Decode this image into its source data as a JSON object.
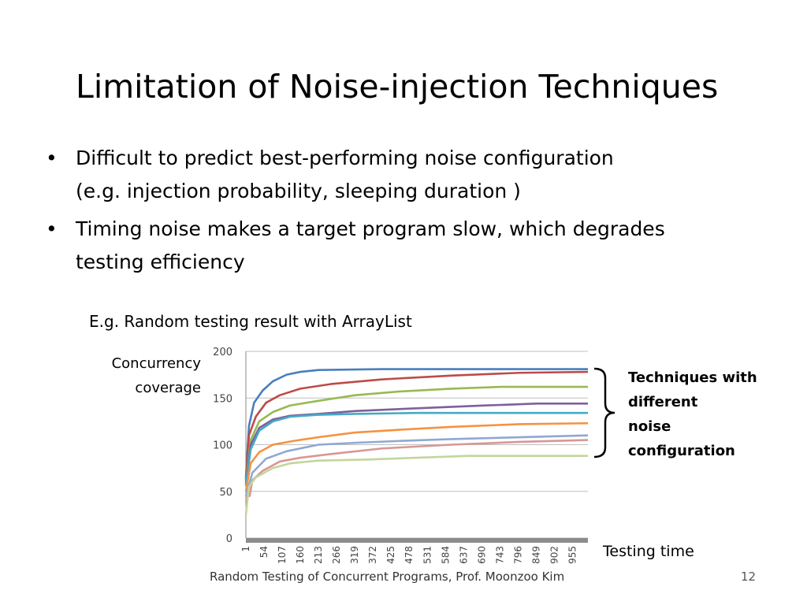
{
  "slide": {
    "title": "Limitation of Noise-injection Techniques",
    "bullets": [
      {
        "lines": [
          "Difficult to predict best-performing noise configuration",
          "(e.g. injection probability, sleeping duration )"
        ]
      },
      {
        "lines": [
          "Timing noise makes a target program slow, which degrades",
          "testing efficiency"
        ]
      }
    ],
    "bullet_glyph": "•",
    "caption": "E.g. Random testing result with ArrayList",
    "y_axis_label": [
      "Concurrency",
      "coverage"
    ],
    "x_axis_label": "Testing time",
    "annotation": [
      "Techniques  with",
      "different",
      "noise",
      "configuration"
    ],
    "footer": "Random Testing of Concurrent Programs, Prof. Moonzoo Kim",
    "page_number": "12"
  },
  "chart_data": {
    "type": "line",
    "title": "",
    "xlabel": "Testing time",
    "ylabel": "Concurrency coverage",
    "ylim": [
      0,
      200
    ],
    "yticks": [
      0,
      50,
      100,
      150,
      200
    ],
    "xticks": [
      "1",
      "54",
      "107",
      "160",
      "213",
      "266",
      "319",
      "372",
      "425",
      "478",
      "531",
      "584",
      "637",
      "690",
      "743",
      "796",
      "849",
      "902",
      "955"
    ],
    "xlim": [
      1,
      1000
    ],
    "grid": "horizontal",
    "series": [
      {
        "color": "#4a7ebb",
        "points": [
          [
            1,
            65
          ],
          [
            10,
            120
          ],
          [
            25,
            145
          ],
          [
            50,
            158
          ],
          [
            80,
            168
          ],
          [
            120,
            175
          ],
          [
            160,
            178
          ],
          [
            213,
            180
          ],
          [
            400,
            181
          ],
          [
            1000,
            181
          ]
        ]
      },
      {
        "color": "#be4b48",
        "points": [
          [
            1,
            62
          ],
          [
            10,
            110
          ],
          [
            30,
            130
          ],
          [
            60,
            145
          ],
          [
            100,
            153
          ],
          [
            160,
            160
          ],
          [
            250,
            165
          ],
          [
            400,
            170
          ],
          [
            600,
            174
          ],
          [
            800,
            177
          ],
          [
            1000,
            178
          ]
        ]
      },
      {
        "color": "#98b954",
        "points": [
          [
            1,
            60
          ],
          [
            15,
            105
          ],
          [
            40,
            125
          ],
          [
            80,
            135
          ],
          [
            130,
            142
          ],
          [
            213,
            147
          ],
          [
            320,
            153
          ],
          [
            450,
            157
          ],
          [
            600,
            160
          ],
          [
            750,
            162
          ],
          [
            1000,
            162
          ]
        ]
      },
      {
        "color": "#7d60a0",
        "points": [
          [
            1,
            58
          ],
          [
            15,
            100
          ],
          [
            40,
            118
          ],
          [
            80,
            127
          ],
          [
            130,
            131
          ],
          [
            213,
            133
          ],
          [
            319,
            136
          ],
          [
            500,
            139
          ],
          [
            700,
            142
          ],
          [
            850,
            144
          ],
          [
            1000,
            144
          ]
        ]
      },
      {
        "color": "#46aac5",
        "points": [
          [
            1,
            56
          ],
          [
            15,
            95
          ],
          [
            40,
            115
          ],
          [
            80,
            125
          ],
          [
            130,
            130
          ],
          [
            213,
            132
          ],
          [
            319,
            133
          ],
          [
            500,
            134
          ],
          [
            1000,
            134
          ]
        ]
      },
      {
        "color": "#f69240",
        "points": [
          [
            1,
            50
          ],
          [
            15,
            80
          ],
          [
            40,
            92
          ],
          [
            80,
            100
          ],
          [
            140,
            104
          ],
          [
            213,
            108
          ],
          [
            319,
            113
          ],
          [
            450,
            116
          ],
          [
            600,
            119
          ],
          [
            800,
            122
          ],
          [
            1000,
            123
          ]
        ]
      },
      {
        "color": "#8fa8d4",
        "points": [
          [
            1,
            45
          ],
          [
            20,
            70
          ],
          [
            60,
            85
          ],
          [
            120,
            93
          ],
          [
            213,
            100
          ],
          [
            319,
            102
          ],
          [
            450,
            104
          ],
          [
            600,
            106
          ],
          [
            800,
            108
          ],
          [
            1000,
            110
          ]
        ]
      },
      {
        "color": "#d99694",
        "points": [
          [
            1,
            40
          ],
          [
            10,
            50
          ],
          [
            12,
            45
          ],
          [
            20,
            62
          ],
          [
            50,
            72
          ],
          [
            100,
            82
          ],
          [
            160,
            86
          ],
          [
            250,
            90
          ],
          [
            400,
            96
          ],
          [
            600,
            100
          ],
          [
            800,
            103
          ],
          [
            1000,
            105
          ]
        ]
      },
      {
        "color": "#c3d69b",
        "points": [
          [
            1,
            25
          ],
          [
            10,
            55
          ],
          [
            30,
            65
          ],
          [
            80,
            75
          ],
          [
            130,
            80
          ],
          [
            213,
            83
          ],
          [
            350,
            84
          ],
          [
            500,
            86
          ],
          [
            650,
            88
          ],
          [
            1000,
            88
          ]
        ]
      }
    ]
  }
}
